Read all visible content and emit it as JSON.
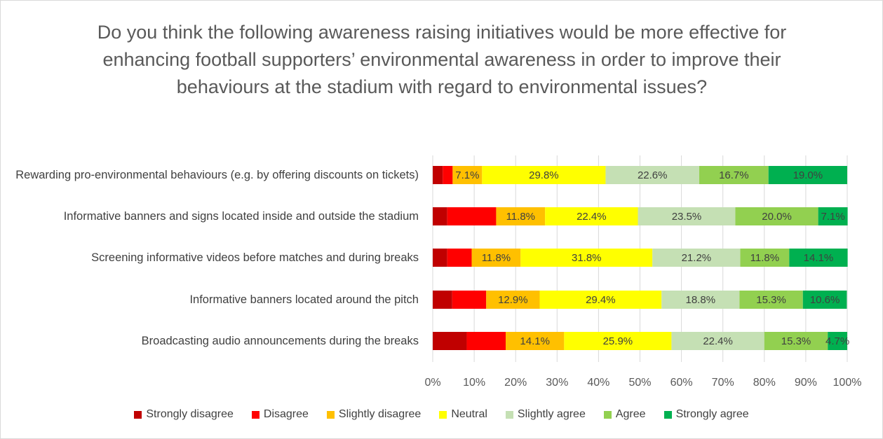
{
  "chart_data": {
    "type": "stacked-bar-horizontal",
    "title": "Do you think the following awareness raising initiatives would be more effective for enhancing football supporters’ environmental awareness in order to improve their behaviours at the stadium with regard to environmental issues?",
    "categories": [
      "Rewarding pro-environmental behaviours (e.g. by offering discounts on tickets)",
      "Informative banners and signs located inside and outside the stadium",
      "Screening informative videos before matches and during breaks",
      "Informative banners located around the pitch",
      "Broadcasting audio announcements during the breaks"
    ],
    "series": [
      {
        "name": "Strongly disagree",
        "color": "#c00000",
        "values": [
          2.4,
          3.5,
          3.5,
          4.7,
          8.2
        ]
      },
      {
        "name": "Disagree",
        "color": "#ff0000",
        "values": [
          2.4,
          11.8,
          5.9,
          8.2,
          9.4
        ]
      },
      {
        "name": "Slightly disagree",
        "color": "#ffc000",
        "values": [
          7.1,
          11.8,
          11.8,
          12.9,
          14.1
        ],
        "value_labels": [
          "7.1%",
          "11.8%",
          "11.8%",
          "12.9%",
          "14.1%"
        ]
      },
      {
        "name": "Neutral",
        "color": "#ffff00",
        "values": [
          29.8,
          22.4,
          31.8,
          29.4,
          25.9
        ],
        "value_labels": [
          "29.8%",
          "22.4%",
          "31.8%",
          "29.4%",
          "25.9%"
        ]
      },
      {
        "name": "Slightly agree",
        "color": "#c5e0b4",
        "values": [
          22.6,
          23.5,
          21.2,
          18.8,
          22.4
        ],
        "value_labels": [
          "22.6%",
          "23.5%",
          "21.2%",
          "18.8%",
          "22.4%"
        ]
      },
      {
        "name": "Agree",
        "color": "#92d050",
        "values": [
          16.7,
          20.0,
          11.8,
          15.3,
          15.3
        ],
        "value_labels": [
          "16.7%",
          "20.0%",
          "11.8%",
          "15.3%",
          "15.3%"
        ]
      },
      {
        "name": "Strongly agree",
        "color": "#00b050",
        "values": [
          19.0,
          7.1,
          14.1,
          10.6,
          4.7
        ],
        "value_labels": [
          "19.0%",
          "7.1%",
          "14.1%",
          "10.6%",
          "4.7%"
        ]
      }
    ],
    "xlim": [
      0,
      100
    ],
    "xticks": [
      {
        "value": 0,
        "label": "0%"
      },
      {
        "value": 10,
        "label": "10%"
      },
      {
        "value": 20,
        "label": "20%"
      },
      {
        "value": 30,
        "label": "30%"
      },
      {
        "value": 40,
        "label": "40%"
      },
      {
        "value": 50,
        "label": "50%"
      },
      {
        "value": 60,
        "label": "60%"
      },
      {
        "value": 70,
        "label": "70%"
      },
      {
        "value": 80,
        "label": "80%"
      },
      {
        "value": 90,
        "label": "90%"
      },
      {
        "value": 100,
        "label": "100%"
      }
    ],
    "grid": true,
    "legend": "bottom"
  }
}
